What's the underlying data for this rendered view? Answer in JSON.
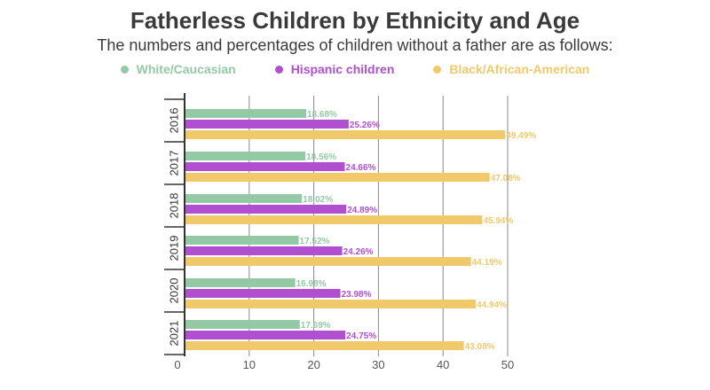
{
  "title": "Fatherless Children by Ethnicity and Age",
  "subtitle": "The numbers and percentages of children without a father are as follows:",
  "colors": {
    "white": "#93c9a4",
    "hispanic": "#b04fd0",
    "black": "#f0c96a",
    "axis": "#333333",
    "grid": "#888888"
  },
  "legend": [
    {
      "label": "White/Caucasian",
      "color_key": "white"
    },
    {
      "label": "Hispanic children",
      "color_key": "hispanic"
    },
    {
      "label": "Black/African-American",
      "color_key": "black"
    }
  ],
  "chart_data": {
    "type": "bar",
    "orientation": "horizontal",
    "title": "Fatherless Children by Ethnicity and Age",
    "subtitle": "The numbers and percentages of children without a father are as follows:",
    "categories": [
      "2016",
      "2017",
      "2018",
      "2019",
      "2020",
      "2021"
    ],
    "series": [
      {
        "name": "White/Caucasian",
        "color_key": "white",
        "values": [
          18.68,
          18.56,
          18.02,
          17.52,
          16.98,
          17.69
        ],
        "labels": [
          "18.68%",
          "18.56%",
          "18.02%",
          "17.52%",
          "16.98%",
          "17.69%"
        ]
      },
      {
        "name": "Hispanic children",
        "color_key": "hispanic",
        "values": [
          25.26,
          24.66,
          24.89,
          24.26,
          23.98,
          24.75
        ],
        "labels": [
          "25.26%",
          "24.66%",
          "24.89%",
          "24.26%",
          "23.98%",
          "24.75%"
        ]
      },
      {
        "name": "Black/African-American",
        "color_key": "black",
        "values": [
          49.49,
          47.08,
          45.94,
          44.19,
          44.94,
          43.08
        ],
        "labels": [
          "49.49%",
          "47.08%",
          "45.94%",
          "44.19%",
          "44.94%",
          "43.08%"
        ]
      }
    ],
    "xlim": [
      0,
      50
    ],
    "xticks": [
      "0",
      "10",
      "20",
      "30",
      "40",
      "50"
    ],
    "xlabel": "",
    "ylabel": "",
    "grid": true,
    "legend_position": "top"
  }
}
